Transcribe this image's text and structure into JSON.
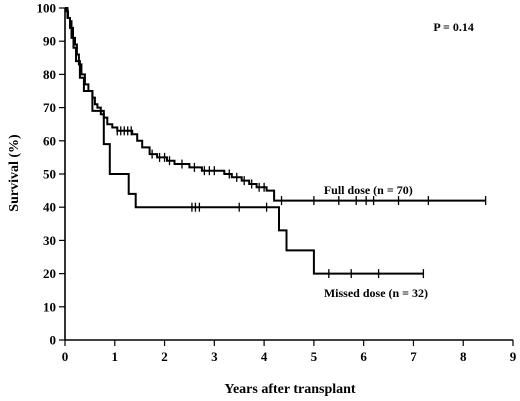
{
  "chart_data": {
    "type": "line",
    "title": "",
    "xlabel": "Years after transplant",
    "ylabel": "Survival (%)",
    "xlim": [
      0,
      9
    ],
    "ylim": [
      0,
      100
    ],
    "x_ticks": [
      "0",
      "1",
      "2",
      "3",
      "4",
      "5",
      "6",
      "7",
      "8",
      "9"
    ],
    "y_ticks": [
      "0",
      "10",
      "20",
      "30",
      "40",
      "50",
      "60",
      "70",
      "80",
      "90",
      "100"
    ],
    "grid": false,
    "legend": "none",
    "annotations": [
      {
        "text": "P = 0.14",
        "x": 7.4,
        "y": 93
      },
      {
        "text": "Full dose (n = 70)",
        "x": 5.2,
        "y": 44
      },
      {
        "text": "Missed dose (n = 32)",
        "x": 5.2,
        "y": 13
      }
    ],
    "series": [
      {
        "name": "Full dose (n = 70)",
        "steps": [
          [
            0,
            100
          ],
          [
            0.03,
            99
          ],
          [
            0.06,
            97
          ],
          [
            0.1,
            96
          ],
          [
            0.13,
            94
          ],
          [
            0.16,
            91
          ],
          [
            0.2,
            89
          ],
          [
            0.24,
            86
          ],
          [
            0.28,
            83
          ],
          [
            0.33,
            80
          ],
          [
            0.4,
            77
          ],
          [
            0.47,
            75
          ],
          [
            0.55,
            73
          ],
          [
            0.6,
            71
          ],
          [
            0.65,
            70
          ],
          [
            0.72,
            68
          ],
          [
            0.78,
            67
          ],
          [
            0.85,
            65
          ],
          [
            0.95,
            64
          ],
          [
            1.05,
            63
          ],
          [
            1.35,
            62
          ],
          [
            1.45,
            60
          ],
          [
            1.55,
            58
          ],
          [
            1.7,
            56
          ],
          [
            1.85,
            55
          ],
          [
            2.05,
            54
          ],
          [
            2.2,
            53
          ],
          [
            2.5,
            52
          ],
          [
            2.75,
            51
          ],
          [
            3.2,
            50
          ],
          [
            3.35,
            49
          ],
          [
            3.55,
            48
          ],
          [
            3.7,
            47
          ],
          [
            3.85,
            46
          ],
          [
            4.05,
            45
          ],
          [
            4.2,
            42
          ],
          [
            8.45,
            42
          ]
        ],
        "censored": [
          [
            1.05,
            63
          ],
          [
            1.12,
            63
          ],
          [
            1.19,
            63
          ],
          [
            1.26,
            63
          ],
          [
            1.33,
            63
          ],
          [
            1.75,
            56
          ],
          [
            1.9,
            55
          ],
          [
            2.0,
            55
          ],
          [
            2.1,
            54
          ],
          [
            2.35,
            53
          ],
          [
            2.6,
            52
          ],
          [
            2.8,
            51
          ],
          [
            2.9,
            51
          ],
          [
            3.0,
            51
          ],
          [
            3.3,
            50
          ],
          [
            3.45,
            49
          ],
          [
            3.6,
            48
          ],
          [
            3.75,
            47
          ],
          [
            3.9,
            46
          ],
          [
            4.0,
            46
          ],
          [
            4.35,
            42
          ],
          [
            5.0,
            42
          ],
          [
            5.5,
            42
          ],
          [
            5.85,
            42
          ],
          [
            6.05,
            42
          ],
          [
            6.2,
            42
          ],
          [
            6.7,
            42
          ],
          [
            7.3,
            42
          ],
          [
            8.45,
            42
          ]
        ]
      },
      {
        "name": "Missed dose (n = 32)",
        "steps": [
          [
            0,
            100
          ],
          [
            0.05,
            97
          ],
          [
            0.1,
            94
          ],
          [
            0.13,
            91
          ],
          [
            0.17,
            88
          ],
          [
            0.22,
            84
          ],
          [
            0.3,
            79
          ],
          [
            0.38,
            75
          ],
          [
            0.55,
            69
          ],
          [
            0.78,
            59
          ],
          [
            0.9,
            50
          ],
          [
            1.28,
            44
          ],
          [
            1.42,
            40
          ],
          [
            4.2,
            40
          ],
          [
            4.3,
            33
          ],
          [
            4.45,
            27
          ],
          [
            5.0,
            20
          ],
          [
            7.2,
            20
          ]
        ],
        "censored": [
          [
            2.55,
            40
          ],
          [
            2.62,
            40
          ],
          [
            2.7,
            40
          ],
          [
            3.5,
            40
          ],
          [
            4.05,
            40
          ],
          [
            5.3,
            20
          ],
          [
            5.75,
            20
          ],
          [
            6.3,
            20
          ],
          [
            7.2,
            20
          ]
        ]
      }
    ]
  }
}
